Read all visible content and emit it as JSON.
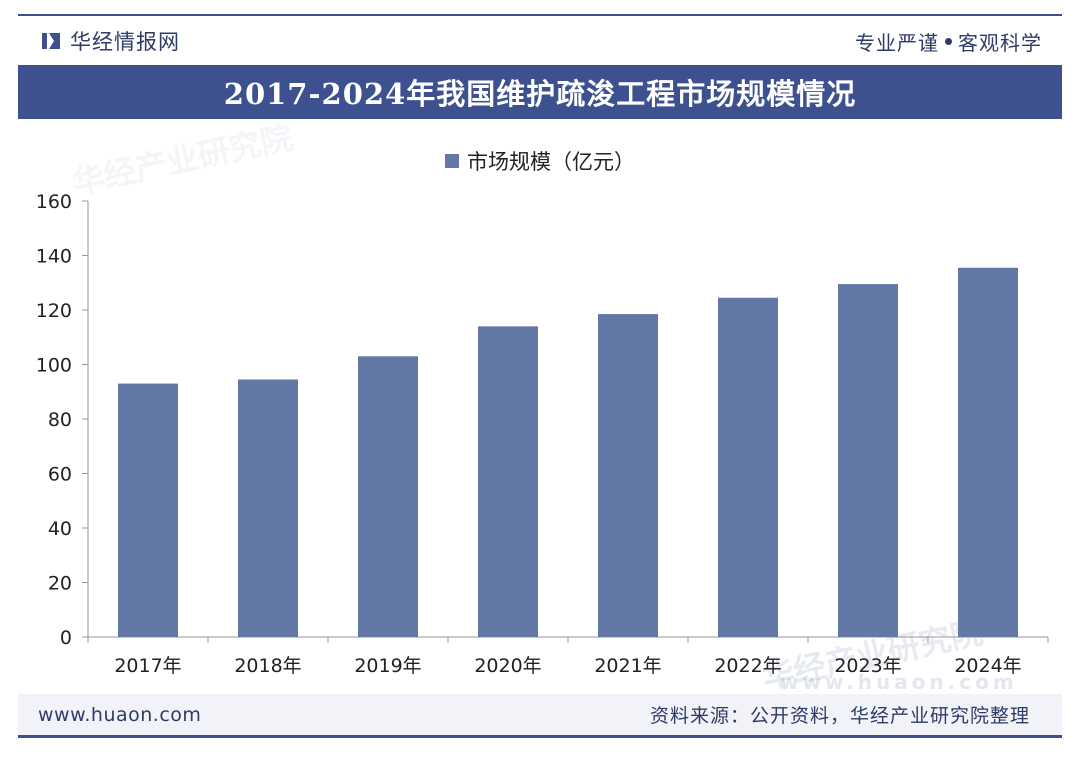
{
  "header": {
    "brand": "华经情报网",
    "slogan_left": "专业严谨",
    "slogan_right": "客观科学"
  },
  "chart_data": {
    "type": "bar",
    "title": "2017-2024年我国维护疏浚工程市场规模情况",
    "xlabel": "",
    "ylabel": "",
    "categories": [
      "2017年",
      "2018年",
      "2019年",
      "2020年",
      "2021年",
      "2022年",
      "2023年",
      "2024年"
    ],
    "series": [
      {
        "name": "市场规模（亿元）",
        "values": [
          93,
          94.5,
          103,
          114,
          118.5,
          124.5,
          129.5,
          135.5
        ]
      }
    ],
    "ylim": [
      0,
      160
    ],
    "yticks": [
      0,
      20,
      40,
      60,
      80,
      100,
      120,
      140,
      160
    ],
    "grid": false,
    "legend": "top-center",
    "bar_color": "#6478a5"
  },
  "footer": {
    "url": "www.huaon.com",
    "source": "资料来源：公开资料，华经产业研究院整理"
  },
  "watermark": {
    "text": "华经产业研究院",
    "url": "www.huaon.com"
  },
  "colors": {
    "primary": "#3d5190",
    "bar": "#6478a5"
  }
}
